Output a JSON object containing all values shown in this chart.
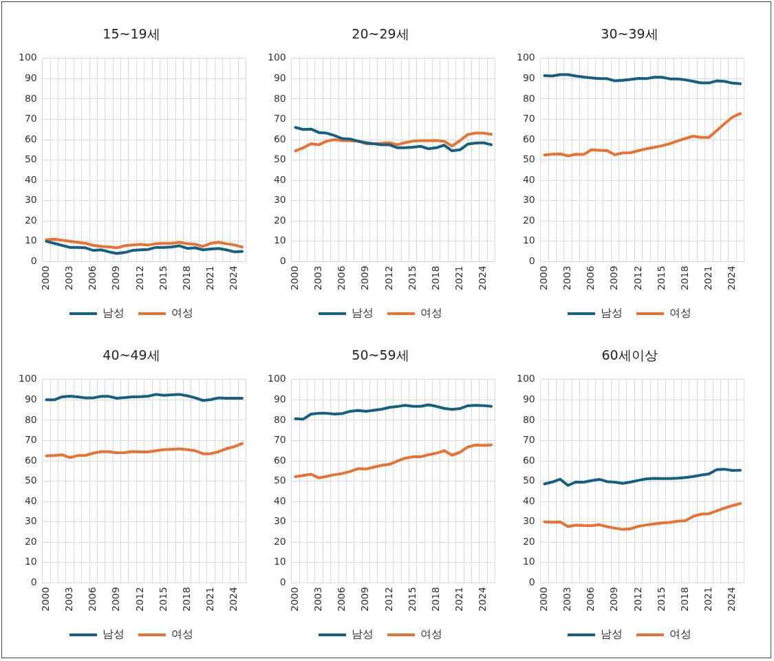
{
  "chart_data": [
    {
      "type": "line",
      "title": "15~19세",
      "categories": [
        "2000",
        null,
        null,
        "2003",
        null,
        null,
        "2006",
        null,
        null,
        "2009",
        null,
        null,
        "2012",
        null,
        null,
        "2015",
        null,
        null,
        "2018",
        null,
        null,
        "2021",
        null,
        null,
        "2024",
        null
      ],
      "ylim": [
        0,
        100
      ],
      "yticks": [
        0,
        10,
        20,
        30,
        40,
        50,
        60,
        70,
        80,
        90,
        100
      ],
      "grid": true,
      "legend": "bottom",
      "marker": "none",
      "series": [
        {
          "name": "남성",
          "color": "#156082",
          "values": [
            10,
            9,
            8,
            7,
            7,
            6.8,
            5.5,
            5.8,
            4.8,
            4,
            4.5,
            5.5,
            5.8,
            6,
            7,
            7,
            7.2,
            7.8,
            6.5,
            6.8,
            5.8,
            6.2,
            6.5,
            5.8,
            4.8,
            5
          ]
        },
        {
          "name": "여성",
          "color": "#e97132",
          "values": [
            10.8,
            11,
            10.5,
            10,
            9.5,
            9,
            8,
            7.5,
            7.2,
            6.8,
            7.8,
            8.2,
            8.5,
            8.2,
            8.8,
            9,
            9,
            9.5,
            8.8,
            8.5,
            7.5,
            9,
            9.5,
            8.8,
            8.2,
            7.2
          ]
        }
      ]
    },
    {
      "type": "line",
      "title": "20~29세",
      "categories": [
        "2000",
        null,
        null,
        "2003",
        null,
        null,
        "2006",
        null,
        null,
        "2009",
        null,
        null,
        "2012",
        null,
        null,
        "2015",
        null,
        null,
        "2018",
        null,
        null,
        "2021",
        null,
        null,
        "2024",
        null
      ],
      "ylim": [
        0,
        100
      ],
      "yticks": [
        0,
        10,
        20,
        30,
        40,
        50,
        60,
        70,
        80,
        90,
        100
      ],
      "grid": true,
      "legend": "bottom",
      "marker": "none",
      "series": [
        {
          "name": "남성",
          "color": "#156082",
          "values": [
            66,
            65,
            65.2,
            63.5,
            63.2,
            62,
            60.5,
            60.3,
            59.3,
            58.5,
            58,
            57.5,
            57.5,
            56,
            56,
            56.3,
            56.7,
            55.5,
            56,
            57.3,
            54.5,
            55,
            57.8,
            58.3,
            58.5,
            57.5
          ]
        },
        {
          "name": "여성",
          "color": "#e97132",
          "values": [
            54.5,
            56,
            58,
            57.5,
            59.3,
            60,
            59.5,
            59.5,
            59.2,
            58,
            58,
            58.2,
            58.5,
            57.5,
            58.5,
            59.3,
            59.5,
            59.5,
            59.6,
            59.2,
            56.8,
            59.5,
            62.5,
            63.2,
            63.2,
            62.6
          ]
        }
      ]
    },
    {
      "type": "line",
      "title": "30~39세",
      "categories": [
        "2000",
        null,
        null,
        "2003",
        null,
        null,
        "2006",
        null,
        null,
        "2009",
        null,
        null,
        "2012",
        null,
        null,
        "2015",
        null,
        null,
        "2018",
        null,
        null,
        "2021",
        null,
        null,
        "2024",
        null
      ],
      "ylim": [
        0,
        100
      ],
      "yticks": [
        0,
        10,
        20,
        30,
        40,
        50,
        60,
        70,
        80,
        90,
        100
      ],
      "grid": true,
      "legend": "bottom",
      "marker": "none",
      "series": [
        {
          "name": "남성",
          "color": "#156082",
          "values": [
            91.5,
            91.3,
            92,
            92,
            91.3,
            90.8,
            90.4,
            90,
            90,
            88.9,
            89.2,
            89.6,
            90.1,
            90,
            90.7,
            90.7,
            89.9,
            89.9,
            89.4,
            88.7,
            87.9,
            87.9,
            88.9,
            88.7,
            87.8,
            87.5
          ]
        },
        {
          "name": "여성",
          "color": "#e97132",
          "values": [
            52.5,
            52.8,
            53,
            52,
            52.8,
            52.7,
            55,
            54.8,
            54.6,
            52.6,
            53.5,
            53.6,
            54.6,
            55.5,
            56.2,
            57,
            58,
            59.4,
            60.6,
            61.7,
            61.1,
            61.1,
            64.5,
            67.9,
            71.1,
            72.8
          ]
        }
      ]
    },
    {
      "type": "line",
      "title": "40~49세",
      "categories": [
        "2000",
        null,
        null,
        "2003",
        null,
        null,
        "2006",
        null,
        null,
        "2009",
        null,
        null,
        "2012",
        null,
        null,
        "2015",
        null,
        null,
        "2018",
        null,
        null,
        "2021",
        null,
        null,
        "2024",
        null
      ],
      "ylim": [
        0,
        100
      ],
      "yticks": [
        0,
        10,
        20,
        30,
        40,
        50,
        60,
        70,
        80,
        90,
        100
      ],
      "grid": true,
      "legend": "bottom",
      "marker": "none",
      "series": [
        {
          "name": "남성",
          "color": "#156082",
          "values": [
            90,
            90,
            91.5,
            91.8,
            91.5,
            91,
            91,
            91.7,
            91.7,
            90.8,
            91.1,
            91.5,
            91.6,
            91.8,
            92.7,
            92.2,
            92.5,
            92.7,
            92,
            91,
            89.7,
            90.1,
            91,
            90.8,
            90.8,
            90.8
          ]
        },
        {
          "name": "여성",
          "color": "#e97132",
          "values": [
            62.5,
            62.6,
            63,
            61.6,
            62.6,
            62.7,
            63.8,
            64.5,
            64.5,
            64,
            64.1,
            64.6,
            64.4,
            64.4,
            65,
            65.5,
            65.7,
            65.9,
            65.5,
            65,
            63.5,
            63.6,
            64.5,
            66,
            67,
            68.5
          ]
        }
      ]
    },
    {
      "type": "line",
      "title": "50~59세",
      "categories": [
        "2000",
        null,
        null,
        "2003",
        null,
        null,
        "2006",
        null,
        null,
        "2009",
        null,
        null,
        "2012",
        null,
        null,
        "2015",
        null,
        null,
        "2018",
        null,
        null,
        "2021",
        null,
        null,
        "2024",
        null
      ],
      "ylim": [
        0,
        100
      ],
      "yticks": [
        0,
        10,
        20,
        30,
        40,
        50,
        60,
        70,
        80,
        90,
        100
      ],
      "grid": true,
      "legend": "bottom",
      "marker": "none",
      "series": [
        {
          "name": "남성",
          "color": "#156082",
          "values": [
            80.7,
            80.5,
            83,
            83.4,
            83.4,
            83,
            83.3,
            84.4,
            84.8,
            84.4,
            84.9,
            85.4,
            86.3,
            86.7,
            87.3,
            86.8,
            86.8,
            87.6,
            86.8,
            85.8,
            85.3,
            85.7,
            87.1,
            87.3,
            87.2,
            86.8
          ]
        },
        {
          "name": "여성",
          "color": "#e97132",
          "values": [
            52.2,
            52.8,
            53.4,
            51.6,
            52.4,
            53.2,
            53.8,
            54.8,
            56.2,
            56,
            56.9,
            57.8,
            58.3,
            59.9,
            61.3,
            62,
            62,
            63,
            63.8,
            65,
            62.8,
            64.2,
            66.8,
            67.8,
            67.6,
            67.8
          ]
        }
      ]
    },
    {
      "type": "line",
      "title": "60세이상",
      "categories": [
        "2000",
        null,
        null,
        "2003",
        null,
        null,
        "2006",
        null,
        null,
        "2009",
        null,
        null,
        "2012",
        null,
        null,
        "2015",
        null,
        null,
        "2018",
        null,
        null,
        "2021",
        null,
        null,
        "2024",
        null
      ],
      "ylim": [
        0,
        100
      ],
      "yticks": [
        0,
        10,
        20,
        30,
        40,
        50,
        60,
        70,
        80,
        90,
        100
      ],
      "grid": true,
      "legend": "bottom",
      "marker": "none",
      "series": [
        {
          "name": "남성",
          "color": "#156082",
          "values": [
            48.7,
            49.6,
            51,
            47.9,
            49.6,
            49.5,
            50.3,
            50.9,
            49.8,
            49.5,
            48.9,
            49.6,
            50.4,
            51.1,
            51.4,
            51.3,
            51.3,
            51.5,
            51.8,
            52.3,
            53,
            53.6,
            55.7,
            55.9,
            55.3,
            55.4
          ]
        },
        {
          "name": "여성",
          "color": "#e97132",
          "values": [
            30,
            29.8,
            30,
            27.7,
            28.4,
            28.2,
            28.1,
            28.6,
            27.6,
            26.9,
            26.3,
            26.6,
            27.8,
            28.5,
            29,
            29.5,
            29.7,
            30.3,
            30.6,
            32.7,
            33.8,
            34,
            35.4,
            36.8,
            38,
            39
          ]
        }
      ]
    }
  ]
}
